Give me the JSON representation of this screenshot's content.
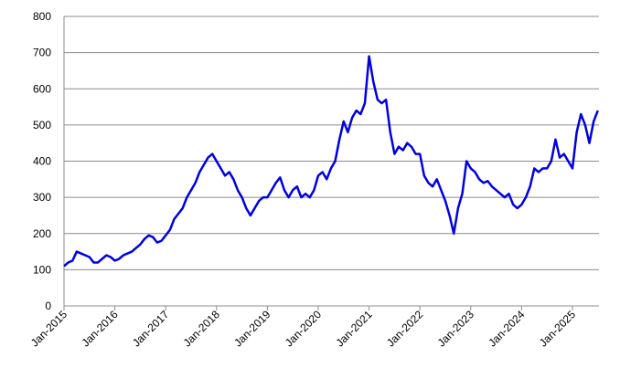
{
  "chart_data": {
    "type": "line",
    "x": [
      "Jan-2015",
      "Feb-2015",
      "Mar-2015",
      "Apr-2015",
      "May-2015",
      "Jun-2015",
      "Jul-2015",
      "Aug-2015",
      "Sep-2015",
      "Oct-2015",
      "Nov-2015",
      "Dec-2015",
      "Jan-2016",
      "Feb-2016",
      "Mar-2016",
      "Apr-2016",
      "May-2016",
      "Jun-2016",
      "Jul-2016",
      "Aug-2016",
      "Sep-2016",
      "Oct-2016",
      "Nov-2016",
      "Dec-2016",
      "Jan-2017",
      "Feb-2017",
      "Mar-2017",
      "Apr-2017",
      "May-2017",
      "Jun-2017",
      "Jul-2017",
      "Aug-2017",
      "Sep-2017",
      "Oct-2017",
      "Nov-2017",
      "Dec-2017",
      "Jan-2018",
      "Feb-2018",
      "Mar-2018",
      "Apr-2018",
      "May-2018",
      "Jun-2018",
      "Jul-2018",
      "Aug-2018",
      "Sep-2018",
      "Oct-2018",
      "Nov-2018",
      "Dec-2018",
      "Jan-2019",
      "Feb-2019",
      "Mar-2019",
      "Apr-2019",
      "May-2019",
      "Jun-2019",
      "Jul-2019",
      "Aug-2019",
      "Sep-2019",
      "Oct-2019",
      "Nov-2019",
      "Dec-2019",
      "Jan-2020",
      "Feb-2020",
      "Mar-2020",
      "Apr-2020",
      "May-2020",
      "Jun-2020",
      "Jul-2020",
      "Aug-2020",
      "Sep-2020",
      "Oct-2020",
      "Nov-2020",
      "Dec-2020",
      "Jan-2021",
      "Feb-2021",
      "Mar-2021",
      "Apr-2021",
      "May-2021",
      "Jun-2021",
      "Jul-2021",
      "Aug-2021",
      "Sep-2021",
      "Oct-2021",
      "Nov-2021",
      "Dec-2021",
      "Jan-2022",
      "Feb-2022",
      "Mar-2022",
      "Apr-2022",
      "May-2022",
      "Jun-2022",
      "Jul-2022",
      "Aug-2022",
      "Sep-2022",
      "Oct-2022",
      "Nov-2022",
      "Dec-2022",
      "Jan-2023",
      "Feb-2023",
      "Mar-2023",
      "Apr-2023",
      "May-2023",
      "Jun-2023",
      "Jul-2023",
      "Aug-2023",
      "Sep-2023",
      "Oct-2023",
      "Nov-2023",
      "Dec-2023",
      "Jan-2024",
      "Feb-2024",
      "Mar-2024",
      "Apr-2024",
      "May-2024",
      "Jun-2024",
      "Jul-2024",
      "Aug-2024",
      "Sep-2024",
      "Oct-2024",
      "Nov-2024",
      "Dec-2024",
      "Jan-2025",
      "Feb-2025",
      "Mar-2025",
      "Apr-2025",
      "May-2025",
      "Jun-2025",
      "Jul-2025"
    ],
    "series": [
      {
        "color": "#0000dd",
        "values": [
          110,
          120,
          125,
          150,
          145,
          140,
          135,
          120,
          120,
          130,
          140,
          135,
          125,
          130,
          140,
          145,
          150,
          160,
          170,
          185,
          195,
          190,
          175,
          180,
          195,
          210,
          240,
          255,
          270,
          300,
          320,
          340,
          370,
          390,
          410,
          420,
          400,
          380,
          360,
          370,
          350,
          320,
          300,
          270,
          250,
          270,
          290,
          300,
          300,
          320,
          340,
          355,
          320,
          300,
          320,
          330,
          300,
          310,
          300,
          320,
          360,
          370,
          350,
          380,
          400,
          460,
          510,
          480,
          520,
          540,
          530,
          560,
          690,
          620,
          570,
          560,
          570,
          480,
          420,
          440,
          430,
          450,
          440,
          420,
          420,
          360,
          340,
          330,
          350,
          320,
          290,
          250,
          200,
          270,
          310,
          400,
          380,
          370,
          350,
          340,
          345,
          330,
          320,
          310,
          300,
          310,
          280,
          270,
          280,
          300,
          330,
          380,
          370,
          380,
          380,
          400,
          460,
          410,
          420,
          400,
          380,
          480,
          530,
          500,
          450,
          510,
          540
        ]
      }
    ],
    "ylim": [
      0,
      800
    ],
    "yticks": [
      0,
      100,
      200,
      300,
      400,
      500,
      600,
      700,
      800
    ],
    "xticks": [
      "Jan-2015",
      "Jan-2016",
      "Jan-2017",
      "Jan-2018",
      "Jan-2019",
      "Jan-2020",
      "Jan-2021",
      "Jan-2022",
      "Jan-2023",
      "Jan-2024",
      "Jan-2025"
    ],
    "grid": true
  }
}
